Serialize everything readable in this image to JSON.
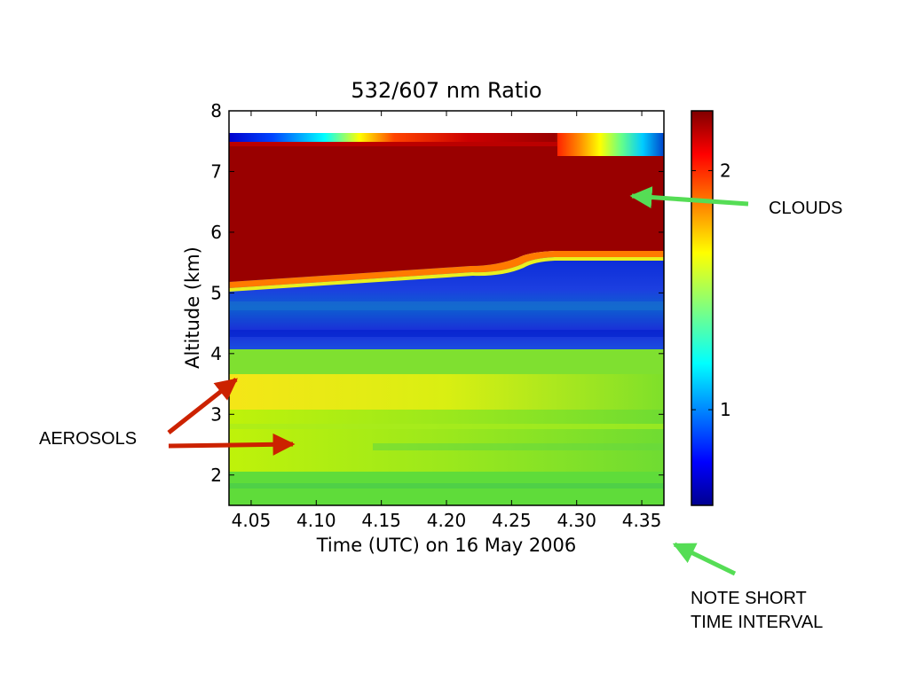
{
  "chart_data": {
    "type": "heatmap",
    "title": "532/607 nm Ratio",
    "xlabel": "Time (UTC) on 16 May 2006",
    "ylabel": "Altitude (km)",
    "xlim": [
      4.033,
      4.367
    ],
    "ylim": [
      1.5,
      8.0
    ],
    "x_ticks": [
      "4.05",
      "4.10",
      "4.15",
      "4.20",
      "4.25",
      "4.30",
      "4.35"
    ],
    "x_tick_values": [
      4.05,
      4.1,
      4.15,
      4.2,
      4.25,
      4.3,
      4.35
    ],
    "y_ticks": [
      "2",
      "3",
      "4",
      "5",
      "6",
      "7",
      "8"
    ],
    "y_tick_values": [
      2,
      3,
      4,
      5,
      6,
      7,
      8
    ],
    "colorbar": {
      "colormap": "jet",
      "range": [
        0.6,
        2.25
      ],
      "ticks": [
        "1",
        "2"
      ],
      "tick_values": [
        1,
        2
      ]
    },
    "regions": [
      {
        "altitude": [
          1.5,
          2.0
        ],
        "ratio": 1.45
      },
      {
        "altitude": [
          2.0,
          3.3
        ],
        "ratio": 1.5
      },
      {
        "altitude": [
          3.3,
          3.9
        ],
        "ratio": 1.62
      },
      {
        "altitude": [
          3.9,
          4.1
        ],
        "ratio": 1.4
      },
      {
        "altitude": [
          4.1,
          5.3
        ],
        "ratio": 0.9
      },
      {
        "altitude": [
          5.3,
          7.5
        ],
        "ratio": 2.25
      },
      {
        "altitude": [
          7.5,
          7.65
        ],
        "ratio": 1.3
      }
    ],
    "cloud_base": {
      "x": [
        4.033,
        4.22,
        4.28,
        4.367
      ],
      "altitude": [
        5.2,
        5.4,
        5.75,
        5.75
      ]
    },
    "annotations": [
      {
        "text": "CLOUDS",
        "color": "#55dd55"
      },
      {
        "text": "AEROSOLS",
        "color": "#cc2200"
      },
      {
        "text_lines": [
          "NOTE SHORT",
          "TIME INTERVAL"
        ],
        "color": "#55dd55"
      }
    ]
  }
}
